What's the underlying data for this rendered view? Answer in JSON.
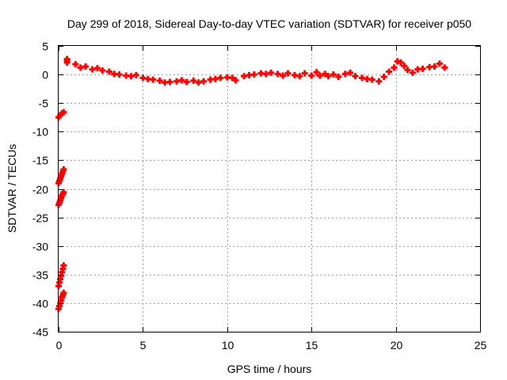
{
  "chart_data": {
    "type": "scatter",
    "title": "Day 299 of 2018, Sidereal Day-to-day VTEC variation (SDTVAR) for receiver p050",
    "xlabel": "GPS time / hours",
    "ylabel": "SDTVAR / TECUs",
    "xlim": [
      0,
      25
    ],
    "ylim": [
      -45,
      5
    ],
    "xticks": [
      0,
      5,
      10,
      15,
      20,
      25
    ],
    "yticks": [
      5,
      0,
      -5,
      -10,
      -15,
      -20,
      -25,
      -30,
      -35,
      -40,
      -45
    ],
    "grid": true,
    "marker": "plus",
    "series": [
      {
        "name": "SDTVAR",
        "color": "#ff0000",
        "points": [
          [
            0.0,
            -7.5
          ],
          [
            0.1,
            -7.1
          ],
          [
            0.2,
            -6.8
          ],
          [
            0.3,
            -6.6
          ],
          [
            0.0,
            -19.0
          ],
          [
            0.05,
            -18.6
          ],
          [
            0.1,
            -18.2
          ],
          [
            0.15,
            -17.8
          ],
          [
            0.2,
            -17.4
          ],
          [
            0.25,
            -17.0
          ],
          [
            0.3,
            -16.6
          ],
          [
            0.0,
            -22.8
          ],
          [
            0.05,
            -22.4
          ],
          [
            0.1,
            -22.0
          ],
          [
            0.15,
            -21.6
          ],
          [
            0.2,
            -21.2
          ],
          [
            0.25,
            -20.9
          ],
          [
            0.3,
            -20.6
          ],
          [
            0.0,
            -37.0
          ],
          [
            0.05,
            -36.4
          ],
          [
            0.1,
            -35.8
          ],
          [
            0.15,
            -35.2
          ],
          [
            0.2,
            -34.6
          ],
          [
            0.25,
            -34.0
          ],
          [
            0.3,
            -33.4
          ],
          [
            0.0,
            -41.0
          ],
          [
            0.05,
            -40.5
          ],
          [
            0.1,
            -40.0
          ],
          [
            0.15,
            -39.5
          ],
          [
            0.2,
            -39.0
          ],
          [
            0.25,
            -38.6
          ],
          [
            0.3,
            -38.2
          ],
          [
            0.5,
            2.4
          ],
          [
            0.5,
            2.7
          ],
          [
            0.5,
            2.1
          ],
          [
            1.0,
            1.8
          ],
          [
            1.3,
            1.2
          ],
          [
            1.6,
            1.4
          ],
          [
            2.0,
            0.9
          ],
          [
            2.3,
            1.1
          ],
          [
            2.6,
            0.7
          ],
          [
            3.0,
            0.5
          ],
          [
            3.3,
            0.1
          ],
          [
            3.6,
            0.0
          ],
          [
            4.0,
            -0.2
          ],
          [
            4.3,
            -0.3
          ],
          [
            4.6,
            -0.1
          ],
          [
            5.0,
            -0.6
          ],
          [
            5.3,
            -0.8
          ],
          [
            5.6,
            -0.9
          ],
          [
            6.0,
            -1.1
          ],
          [
            6.3,
            -1.4
          ],
          [
            6.6,
            -1.3
          ],
          [
            7.0,
            -1.2
          ],
          [
            7.3,
            -1.0
          ],
          [
            7.6,
            -1.3
          ],
          [
            8.0,
            -1.1
          ],
          [
            8.3,
            -1.4
          ],
          [
            8.6,
            -1.2
          ],
          [
            9.0,
            -0.9
          ],
          [
            9.3,
            -0.8
          ],
          [
            9.6,
            -0.6
          ],
          [
            10.0,
            -0.5
          ],
          [
            10.3,
            -0.6
          ],
          [
            10.5,
            -1.0
          ],
          [
            11.0,
            -0.3
          ],
          [
            11.3,
            -0.1
          ],
          [
            11.6,
            0.0
          ],
          [
            12.0,
            0.2
          ],
          [
            12.3,
            0.1
          ],
          [
            12.6,
            0.3
          ],
          [
            13.0,
            0.1
          ],
          [
            13.3,
            -0.2
          ],
          [
            13.6,
            0.2
          ],
          [
            14.0,
            -0.1
          ],
          [
            14.3,
            -0.3
          ],
          [
            14.6,
            0.2
          ],
          [
            15.0,
            -0.2
          ],
          [
            15.3,
            0.4
          ],
          [
            15.5,
            -0.2
          ],
          [
            15.8,
            0.1
          ],
          [
            16.0,
            -0.3
          ],
          [
            16.3,
            0.0
          ],
          [
            16.6,
            -0.4
          ],
          [
            17.0,
            0.1
          ],
          [
            17.3,
            0.3
          ],
          [
            17.6,
            -0.3
          ],
          [
            18.0,
            -0.6
          ],
          [
            18.3,
            -0.8
          ],
          [
            18.6,
            -0.9
          ],
          [
            19.0,
            -1.2
          ],
          [
            19.3,
            -0.4
          ],
          [
            19.6,
            0.5
          ],
          [
            19.9,
            1.2
          ],
          [
            20.1,
            2.3
          ],
          [
            20.3,
            2.1
          ],
          [
            20.5,
            1.5
          ],
          [
            20.7,
            0.8
          ],
          [
            21.0,
            0.3
          ],
          [
            21.3,
            0.9
          ],
          [
            21.6,
            1.0
          ],
          [
            22.0,
            1.3
          ],
          [
            22.3,
            1.4
          ],
          [
            22.6,
            1.9
          ],
          [
            22.9,
            1.2
          ]
        ]
      }
    ]
  }
}
